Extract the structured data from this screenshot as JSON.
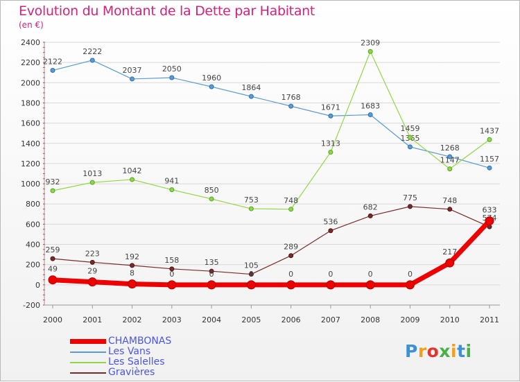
{
  "title": "Evolution du Montant de la Dette par Habitant",
  "subtitle": "(en €)",
  "brand": "Proxiti",
  "chart_data": {
    "type": "line",
    "title": "Evolution du Montant de la Dette par Habitant",
    "ylabel": "(en €)",
    "categories": [
      "2000",
      "2001",
      "2002",
      "2003",
      "2004",
      "2005",
      "2006",
      "2007",
      "2008",
      "2009",
      "2010",
      "2011"
    ],
    "ylim": [
      -200,
      2400
    ],
    "yticks": [
      -200,
      0,
      200,
      400,
      600,
      800,
      1000,
      1200,
      1400,
      1600,
      1800,
      2000,
      2200,
      2400
    ],
    "legend_position": "bottom-left",
    "series": [
      {
        "name": "Les Vans",
        "color": "#5b9bd5",
        "values": [
          2122,
          2222,
          2037,
          2050,
          1960,
          1864,
          1768,
          1671,
          1683,
          1365,
          1268,
          1157
        ]
      },
      {
        "name": "Les Salelles",
        "color": "#8fd845",
        "values": [
          932,
          1013,
          1042,
          941,
          850,
          753,
          748,
          1313,
          2309,
          1459,
          1147,
          1437
        ]
      },
      {
        "name": "Gravières",
        "color": "#7b2a2a",
        "values": [
          259,
          223,
          192,
          158,
          135,
          105,
          289,
          536,
          682,
          775,
          748,
          574
        ]
      },
      {
        "name": "CHAMBONAS",
        "color": "#ee0000",
        "values": [
          49,
          29,
          8,
          0,
          0,
          0,
          0,
          0,
          0,
          0,
          217,
          633
        ]
      }
    ]
  },
  "legend": [
    {
      "name": "CHAMBONAS",
      "color": "#ee0000"
    },
    {
      "name": "Les Vans",
      "color": "#5b9bd5"
    },
    {
      "name": "Les Salelles",
      "color": "#8fd845"
    },
    {
      "name": "Gravières",
      "color": "#7b2a2a"
    }
  ]
}
